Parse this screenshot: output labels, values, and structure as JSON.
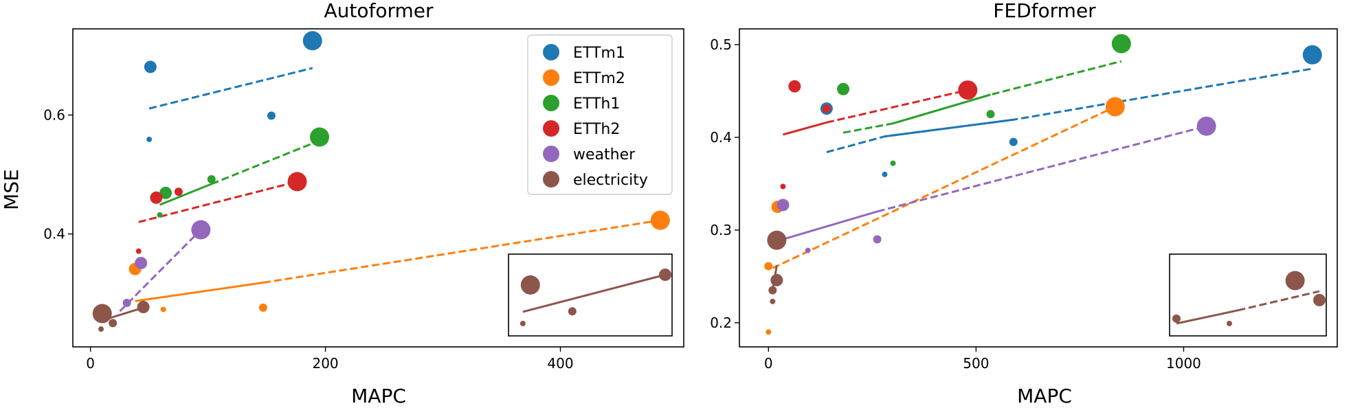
{
  "chart_data": [
    {
      "type": "scatter",
      "title": "Autoformer",
      "xlabel": "MAPC",
      "ylabel": "MSE",
      "xlim": [
        -15,
        505
      ],
      "ylim": [
        0.21,
        0.745
      ],
      "xticks": [
        0,
        200,
        400
      ],
      "yticks": [
        0.4,
        0.6
      ],
      "legend": {
        "position": "top-right",
        "entries": [
          "ETTm1",
          "ETTm2",
          "ETTh1",
          "ETTh2",
          "weather",
          "electricity"
        ]
      },
      "series": [
        {
          "name": "ETTm1",
          "color": "#1f77b4",
          "points": [
            {
              "x": 50,
              "y": 0.559,
              "r": 4
            },
            {
              "x": 51,
              "y": 0.681,
              "r": 9
            },
            {
              "x": 154,
              "y": 0.599,
              "r": 6
            },
            {
              "x": 189,
              "y": 0.725,
              "r": 14
            }
          ],
          "fit": {
            "solid": [],
            "dashed": [
              [
                50,
                0.611
              ],
              [
                189,
                0.679
              ]
            ]
          }
        },
        {
          "name": "ETTm2",
          "color": "#ff7f0e",
          "points": [
            {
              "x": 38,
              "y": 0.341,
              "r": 9
            },
            {
              "x": 62,
              "y": 0.273,
              "r": 4
            },
            {
              "x": 147,
              "y": 0.276,
              "r": 6
            },
            {
              "x": 485,
              "y": 0.423,
              "r": 14
            }
          ],
          "fit": {
            "solid": [
              [
                38,
                0.287
              ],
              [
                147,
                0.318
              ]
            ],
            "dashed": [
              [
                147,
                0.318
              ],
              [
                485,
                0.423
              ]
            ]
          }
        },
        {
          "name": "ETTh1",
          "color": "#2ca02c",
          "points": [
            {
              "x": 59,
              "y": 0.432,
              "r": 4
            },
            {
              "x": 64,
              "y": 0.469,
              "r": 9
            },
            {
              "x": 103,
              "y": 0.492,
              "r": 6
            },
            {
              "x": 195,
              "y": 0.563,
              "r": 14
            }
          ],
          "fit": {
            "solid": [
              [
                59,
                0.449
              ],
              [
                103,
                0.484
              ]
            ],
            "dashed": [
              [
                103,
                0.484
              ],
              [
                195,
                0.557
              ]
            ]
          }
        },
        {
          "name": "ETTh2",
          "color": "#d62728",
          "points": [
            {
              "x": 41,
              "y": 0.371,
              "r": 4
            },
            {
              "x": 56,
              "y": 0.461,
              "r": 9
            },
            {
              "x": 75,
              "y": 0.471,
              "r": 6
            },
            {
              "x": 176,
              "y": 0.488,
              "r": 14
            }
          ],
          "fit": {
            "solid": [],
            "dashed": [
              [
                41,
                0.42
              ],
              [
                176,
                0.488
              ]
            ]
          }
        },
        {
          "name": "weather",
          "color": "#9467bd",
          "points": [
            {
              "x": 31,
              "y": 0.284,
              "r": 6
            },
            {
              "x": 43,
              "y": 0.351,
              "r": 9
            },
            {
              "x": 94,
              "y": 0.407,
              "r": 14
            }
          ],
          "fit": {
            "solid": [],
            "dashed": [
              [
                25,
                0.27
              ],
              [
                94,
                0.407
              ]
            ]
          }
        },
        {
          "name": "electricity",
          "color": "#8c564b",
          "points": [
            {
              "x": 9,
              "y": 0.24,
              "r": 4
            },
            {
              "x": 19,
              "y": 0.25,
              "r": 6
            },
            {
              "x": 10,
              "y": 0.266,
              "r": 14
            },
            {
              "x": 45,
              "y": 0.277,
              "r": 9
            }
          ],
          "fit": {
            "solid": [
              [
                9,
                0.254
              ],
              [
                45,
                0.276
              ]
            ],
            "dashed": []
          }
        }
      ],
      "inset": {
        "series": "electricity",
        "points": [
          {
            "x": 0.05,
            "y": 0.0,
            "r": 4
          },
          {
            "x": 0.1,
            "y": 0.79,
            "r": 14
          },
          {
            "x": 0.38,
            "y": 0.25,
            "r": 6
          },
          {
            "x": 1.0,
            "y": 1.0,
            "r": 9
          }
        ],
        "fit": [
          [
            0.05,
            0.24
          ],
          [
            1.0,
            1.0
          ]
        ]
      }
    },
    {
      "type": "scatter",
      "title": "FEDformer",
      "xlabel": "MAPC",
      "ylabel": "",
      "xlim": [
        -70,
        1370
      ],
      "ylim": [
        0.174,
        0.517
      ],
      "xticks": [
        0,
        500,
        1000
      ],
      "yticks": [
        0.2,
        0.3,
        0.4,
        0.5
      ],
      "legend": null,
      "series": [
        {
          "name": "ETTm1",
          "color": "#1f77b4",
          "points": [
            {
              "x": 140,
              "y": 0.431,
              "r": 9
            },
            {
              "x": 280,
              "y": 0.36,
              "r": 4
            },
            {
              "x": 590,
              "y": 0.395,
              "r": 6
            },
            {
              "x": 1310,
              "y": 0.489,
              "r": 14
            }
          ],
          "fit": {
            "solid": [
              [
                280,
                0.401
              ],
              [
                590,
                0.419
              ]
            ],
            "dashed": [
              [
                140,
                0.384
              ],
              [
                280,
                0.401
              ],
              [
                590,
                0.419
              ],
              [
                1310,
                0.474
              ]
            ]
          }
        },
        {
          "name": "ETTm2",
          "color": "#ff7f0e",
          "points": [
            {
              "x": 0,
              "y": 0.19,
              "r": 4
            },
            {
              "x": 0,
              "y": 0.261,
              "r": 6
            },
            {
              "x": 22,
              "y": 0.325,
              "r": 9
            },
            {
              "x": 835,
              "y": 0.433,
              "r": 14
            }
          ],
          "fit": {
            "solid": [],
            "dashed": [
              [
                10,
                0.259
              ],
              [
                835,
                0.433
              ]
            ]
          }
        },
        {
          "name": "ETTh1",
          "color": "#2ca02c",
          "points": [
            {
              "x": 180,
              "y": 0.452,
              "r": 9
            },
            {
              "x": 300,
              "y": 0.372,
              "r": 4
            },
            {
              "x": 535,
              "y": 0.425,
              "r": 6
            },
            {
              "x": 850,
              "y": 0.501,
              "r": 14
            }
          ],
          "fit": {
            "solid": [
              [
                300,
                0.415
              ],
              [
                535,
                0.446
              ]
            ],
            "dashed": [
              [
                180,
                0.405
              ],
              [
                300,
                0.415
              ],
              [
                535,
                0.446
              ],
              [
                850,
                0.482
              ]
            ]
          }
        },
        {
          "name": "ETTh2",
          "color": "#d62728",
          "points": [
            {
              "x": 35,
              "y": 0.347,
              "r": 4
            },
            {
              "x": 63,
              "y": 0.455,
              "r": 9
            },
            {
              "x": 140,
              "y": 0.431,
              "r": 6
            },
            {
              "x": 480,
              "y": 0.451,
              "r": 14
            }
          ],
          "fit": {
            "solid": [
              [
                35,
                0.403
              ],
              [
                140,
                0.416
              ]
            ],
            "dashed": [
              [
                140,
                0.416
              ],
              [
                480,
                0.451
              ]
            ]
          }
        },
        {
          "name": "weather",
          "color": "#9467bd",
          "points": [
            {
              "x": 35,
              "y": 0.327,
              "r": 9
            },
            {
              "x": 95,
              "y": 0.278,
              "r": 4
            },
            {
              "x": 262,
              "y": 0.29,
              "r": 6
            },
            {
              "x": 1055,
              "y": 0.412,
              "r": 14
            }
          ],
          "fit": {
            "solid": [
              [
                35,
                0.29
              ],
              [
                262,
                0.32
              ]
            ],
            "dashed": [
              [
                262,
                0.32
              ],
              [
                1055,
                0.412
              ]
            ]
          }
        },
        {
          "name": "electricity",
          "color": "#8c564b",
          "points": [
            {
              "x": 10,
              "y": 0.223,
              "r": 4
            },
            {
              "x": 10,
              "y": 0.235,
              "r": 6
            },
            {
              "x": 20,
              "y": 0.246,
              "r": 9
            },
            {
              "x": 20,
              "y": 0.289,
              "r": 14
            }
          ],
          "fit": {
            "solid": [
              [
                10,
                0.235
              ],
              [
                20,
                0.262
              ]
            ],
            "dashed": []
          }
        }
      ],
      "inset": {
        "series": "electricity",
        "points": [
          {
            "x": 0.0,
            "y": 0.1,
            "r": 6
          },
          {
            "x": 0.37,
            "y": 0.0,
            "r": 4
          },
          {
            "x": 0.83,
            "y": 0.88,
            "r": 14
          },
          {
            "x": 1.0,
            "y": 0.48,
            "r": 9
          }
        ],
        "fit": {
          "solid": [
            [
              0.0,
              0.0
            ],
            [
              0.43,
              0.27
            ]
          ],
          "dashed": [
            [
              0.43,
              0.27
            ],
            [
              1.0,
              0.66
            ]
          ]
        }
      }
    }
  ]
}
